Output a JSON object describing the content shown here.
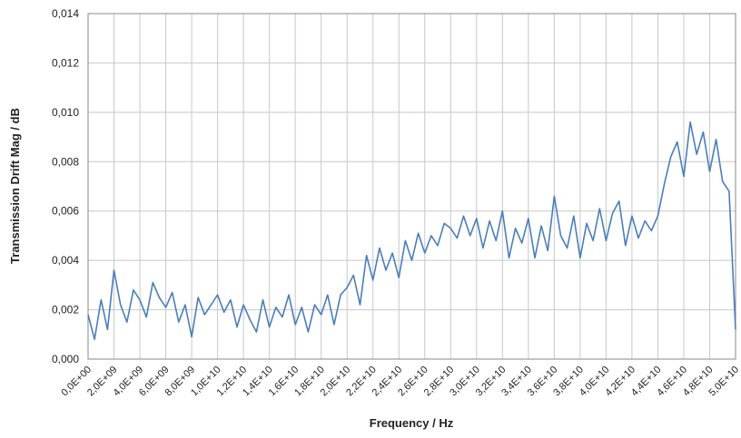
{
  "chart_data": {
    "type": "line",
    "xlabel": "Frequency / Hz",
    "ylabel": "Transmission Drift Mag / dB",
    "xlim": [
      0,
      50000000000
    ],
    "ylim": [
      0,
      0.014
    ],
    "grid": true,
    "line_color": "#4a7ebb",
    "x_tick_values": [
      0,
      2000000000,
      4000000000,
      6000000000,
      8000000000,
      10000000000,
      12000000000,
      14000000000,
      16000000000,
      18000000000,
      20000000000,
      22000000000,
      24000000000,
      26000000000,
      28000000000,
      30000000000,
      32000000000,
      34000000000,
      36000000000,
      38000000000,
      40000000000,
      42000000000,
      44000000000,
      46000000000,
      48000000000,
      50000000000
    ],
    "x_tick_labels": [
      "0,0E+00",
      "2,0E+09",
      "4,0E+09",
      "6,0E+09",
      "8,0E+09",
      "1,0E+10",
      "1,2E+10",
      "1,4E+10",
      "1,6E+10",
      "1,8E+10",
      "2,0E+10",
      "2,2E+10",
      "2,4E+10",
      "2,6E+10",
      "2,8E+10",
      "3,0E+10",
      "3,2E+10",
      "3,4E+10",
      "3,6E+10",
      "3,8E+10",
      "4,0E+10",
      "4,2E+10",
      "4,4E+10",
      "4,6E+10",
      "4,8E+10",
      "5,0E+10"
    ],
    "y_tick_values": [
      0,
      0.002,
      0.004,
      0.006,
      0.008,
      0.01,
      0.012,
      0.014
    ],
    "y_tick_labels": [
      "0,000",
      "0,002",
      "0,004",
      "0,006",
      "0,008",
      "0,010",
      "0,012",
      "0,014"
    ],
    "series": [
      {
        "x": [
          0,
          500000000,
          1000000000,
          1500000000,
          2000000000,
          2500000000,
          3000000000,
          3500000000,
          4000000000,
          4500000000,
          5000000000,
          5500000000,
          6000000000,
          6500000000,
          7000000000,
          7500000000,
          8000000000,
          8500000000,
          9000000000,
          9500000000,
          10000000000,
          10500000000,
          11000000000,
          11500000000,
          12000000000,
          12500000000,
          13000000000,
          13500000000,
          14000000000,
          14500000000,
          15000000000,
          15500000000,
          16000000000,
          16500000000,
          17000000000,
          17500000000,
          18000000000,
          18500000000,
          19000000000,
          19500000000,
          20000000000,
          20500000000,
          21000000000,
          21500000000,
          22000000000,
          22500000000,
          23000000000,
          23500000000,
          24000000000,
          24500000000,
          25000000000,
          25500000000,
          26000000000,
          26500000000,
          27000000000,
          27500000000,
          28000000000,
          28500000000,
          29000000000,
          29500000000,
          30000000000,
          30500000000,
          31000000000,
          31500000000,
          32000000000,
          32500000000,
          33000000000,
          33500000000,
          34000000000,
          34500000000,
          35000000000,
          35500000000,
          36000000000,
          36500000000,
          37000000000,
          37500000000,
          38000000000,
          38500000000,
          39000000000,
          39500000000,
          40000000000,
          40500000000,
          41000000000,
          41500000000,
          42000000000,
          42500000000,
          43000000000,
          43500000000,
          44000000000,
          44500000000,
          45000000000,
          45500000000,
          46000000000,
          46500000000,
          47000000000,
          47500000000,
          48000000000,
          48500000000,
          49000000000,
          49500000000,
          50000000000
        ],
        "y": [
          0.0018,
          0.0008,
          0.0024,
          0.0012,
          0.0036,
          0.0022,
          0.0015,
          0.0028,
          0.0024,
          0.0017,
          0.0031,
          0.0025,
          0.0021,
          0.0027,
          0.0015,
          0.0022,
          0.0009,
          0.0025,
          0.0018,
          0.0022,
          0.0026,
          0.0019,
          0.0024,
          0.0013,
          0.0022,
          0.0016,
          0.0011,
          0.0024,
          0.0013,
          0.0021,
          0.0017,
          0.0026,
          0.0014,
          0.0021,
          0.0011,
          0.0022,
          0.0018,
          0.0026,
          0.0014,
          0.0026,
          0.0029,
          0.0034,
          0.0022,
          0.0042,
          0.0032,
          0.0045,
          0.0036,
          0.0043,
          0.0033,
          0.0048,
          0.004,
          0.0051,
          0.0043,
          0.005,
          0.0046,
          0.0055,
          0.0053,
          0.0049,
          0.0058,
          0.005,
          0.0057,
          0.0045,
          0.0056,
          0.0048,
          0.006,
          0.0041,
          0.0053,
          0.0047,
          0.0057,
          0.0041,
          0.0054,
          0.0044,
          0.0066,
          0.005,
          0.0045,
          0.0058,
          0.0041,
          0.0055,
          0.0048,
          0.0061,
          0.0048,
          0.0059,
          0.0064,
          0.0046,
          0.0058,
          0.0049,
          0.0056,
          0.0052,
          0.0058,
          0.0071,
          0.0082,
          0.0088,
          0.0074,
          0.0096,
          0.0083,
          0.0092,
          0.0076,
          0.0089,
          0.0072,
          0.0068,
          0.0012
        ]
      }
    ]
  }
}
